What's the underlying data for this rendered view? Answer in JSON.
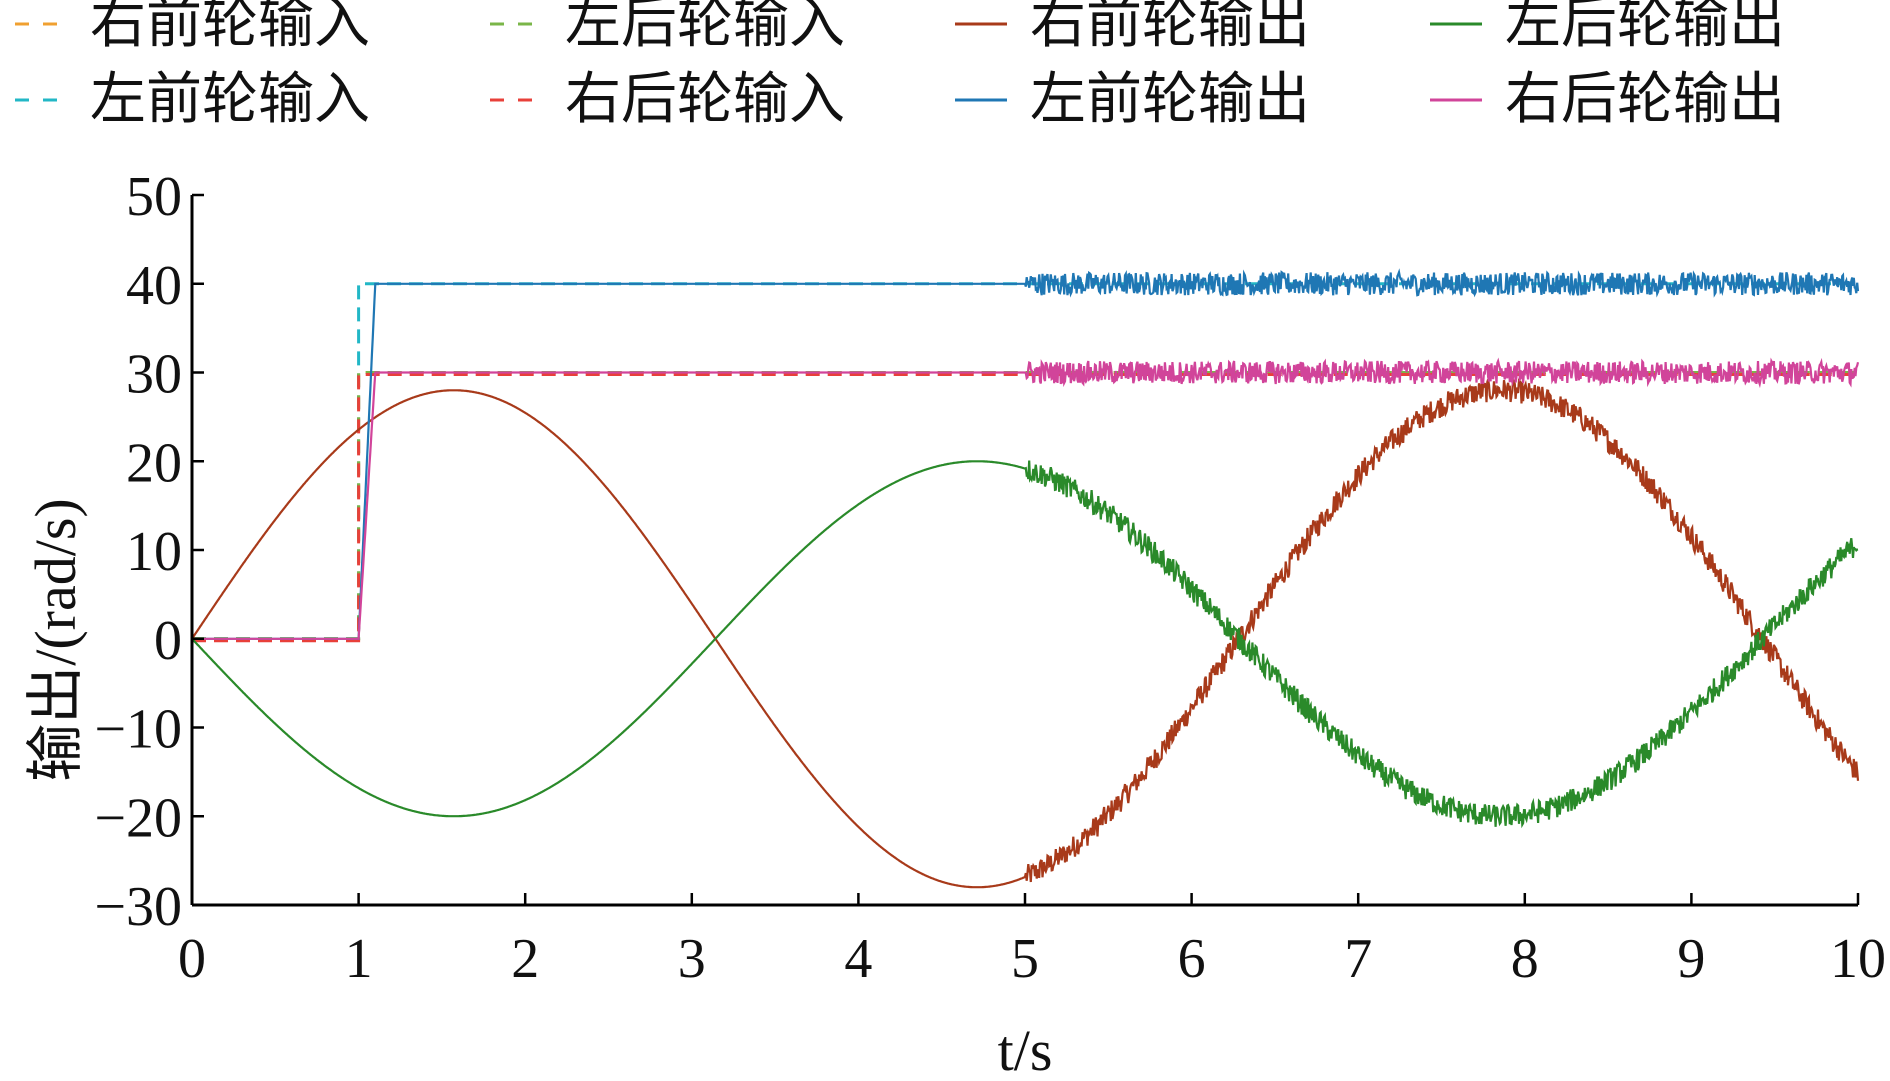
{
  "chart_data": {
    "type": "line",
    "xlabel": "t/s",
    "ylabel": "输出/(rad/s)",
    "xlim": [
      0,
      10
    ],
    "ylim": [
      -30,
      50
    ],
    "xticks": [
      "0",
      "1",
      "2",
      "3",
      "4",
      "5",
      "6",
      "7",
      "8",
      "9",
      "10"
    ],
    "yticks": [
      "−30",
      "−20",
      "−10",
      "0",
      "10",
      "20",
      "30",
      "40",
      "50"
    ],
    "grid": false,
    "legend_position": "top",
    "legend_columns": 4,
    "series": [
      {
        "name": "右前轮输入",
        "kind": "input",
        "color": "#f0a030",
        "dash": true,
        "description_points": [
          [
            0,
            0
          ],
          [
            1,
            0
          ],
          [
            1,
            30
          ],
          [
            10,
            30
          ]
        ]
      },
      {
        "name": "左前轮输入",
        "kind": "input",
        "color": "#22b7c6",
        "dash": true,
        "description_points": [
          [
            0,
            0
          ],
          [
            1,
            0
          ],
          [
            1,
            40
          ],
          [
            10,
            40
          ]
        ]
      },
      {
        "name": "左后轮输入",
        "kind": "input",
        "color": "#7ab648",
        "dash": true,
        "description_points": [
          [
            0,
            0
          ],
          [
            1,
            0
          ],
          [
            1,
            30
          ],
          [
            10,
            30
          ]
        ]
      },
      {
        "name": "右后轮输入",
        "kind": "input",
        "color": "#e8403a",
        "dash": true,
        "description_points": [
          [
            0,
            0
          ],
          [
            1,
            0
          ],
          [
            1,
            30
          ],
          [
            10,
            30
          ]
        ]
      },
      {
        "name": "右前轮输出",
        "kind": "output",
        "color": "#a83a1a",
        "dash": false,
        "function": "28*sin(t)",
        "t_range": [
          0,
          10
        ],
        "noise_after": 5
      },
      {
        "name": "左前轮输出",
        "kind": "output",
        "color": "#1f77b4",
        "dash": false,
        "points": [
          [
            0,
            0
          ],
          [
            1,
            0
          ],
          [
            1.1,
            40
          ],
          [
            10,
            40
          ]
        ],
        "noise_after": 5
      },
      {
        "name": "左后轮输出",
        "kind": "output",
        "color": "#2a8a2a",
        "dash": false,
        "function": "-20*sin(t)",
        "t_range": [
          0,
          10
        ],
        "noise_after": 5
      },
      {
        "name": "右后轮输出",
        "kind": "output",
        "color": "#d1449a",
        "dash": false,
        "points": [
          [
            0,
            0
          ],
          [
            1,
            0
          ],
          [
            1.1,
            30
          ],
          [
            10,
            30
          ]
        ],
        "noise_after": 5
      }
    ]
  }
}
